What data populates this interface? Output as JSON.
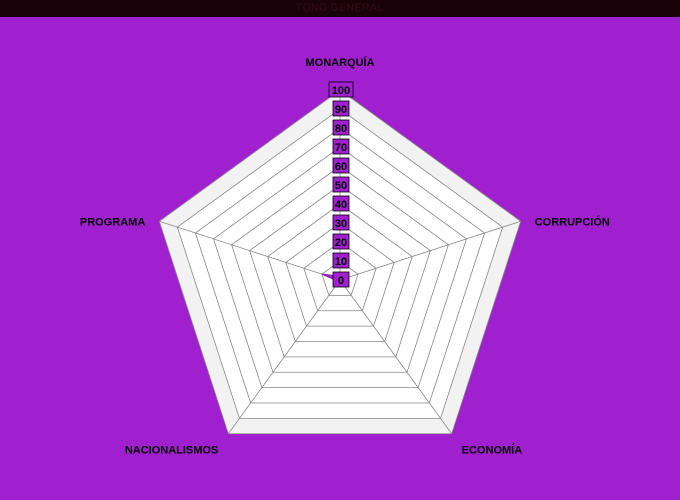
{
  "title": "TONO GENERAL",
  "chart_data": {
    "type": "radar",
    "axes": [
      "MONARQUÍA",
      "CORRUPCIÓN",
      "ECONOMÍA",
      "NACIONALISMOS",
      "PROGRAMA"
    ],
    "ticks": [
      "0",
      "10",
      "20",
      "30",
      "40",
      "50",
      "60",
      "70",
      "80",
      "90",
      "100"
    ],
    "range": [
      0,
      100
    ],
    "series": [
      {
        "values": [
          2,
          1,
          1,
          1,
          10
        ]
      }
    ],
    "colors": {
      "background": "#a020d0",
      "grid_fill_light": "#f2f2f2",
      "grid_fill_white": "#ffffff",
      "grid_line": "#888888",
      "series_fill": "#9010c0",
      "tick_box": "#a020d0"
    }
  }
}
